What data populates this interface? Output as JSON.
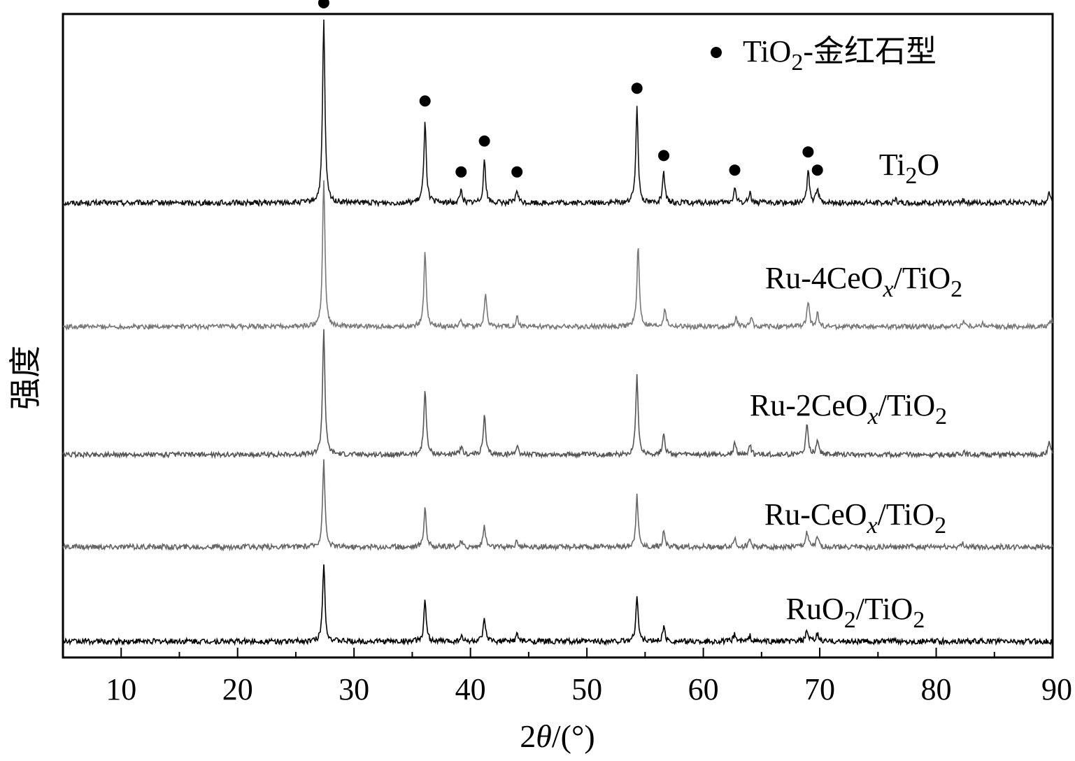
{
  "chart_data": {
    "type": "line",
    "title": "",
    "xlabel": {
      "prefix": "2",
      "symbol": "θ",
      "suffix": "/(°)"
    },
    "ylabel": "强度",
    "xlim": [
      5,
      90
    ],
    "x_ticks": [
      10,
      20,
      30,
      40,
      50,
      60,
      70,
      80,
      90
    ],
    "y_ticks": [],
    "grid": false,
    "legend": {
      "placement": "top-right",
      "marker": "filled-circle",
      "label": {
        "main": "TiO",
        "sub": "2",
        "rest": "-金红石型"
      }
    },
    "rutile_marker_positions": [
      27.4,
      36.1,
      39.2,
      41.2,
      44.0,
      54.3,
      56.6,
      62.7,
      69.0,
      69.8
    ],
    "series": [
      {
        "name": "Ti2O",
        "label_parts": [
          {
            "t": "Ti"
          },
          {
            "t": "2",
            "sub": true
          },
          {
            "t": "O"
          }
        ],
        "color": "#111111",
        "baseline": 0,
        "noise": 3.0,
        "peaks": [
          [
            27.4,
            100
          ],
          [
            36.1,
            46
          ],
          [
            39.2,
            7
          ],
          [
            41.2,
            24
          ],
          [
            44.0,
            7
          ],
          [
            54.3,
            53
          ],
          [
            56.6,
            16
          ],
          [
            62.7,
            8
          ],
          [
            64.0,
            6
          ],
          [
            69.0,
            18
          ],
          [
            69.8,
            8
          ],
          [
            76.5,
            2
          ],
          [
            82.3,
            2
          ],
          [
            89.7,
            6
          ]
        ]
      },
      {
        "name": "Ru-4CeOx/TiO2",
        "label_parts": [
          {
            "t": "Ru-4CeO"
          },
          {
            "t": "x",
            "sub": true,
            "italic": true
          },
          {
            "t": "/TiO"
          },
          {
            "t": "2",
            "sub": true
          }
        ],
        "color": "#777777",
        "baseline": 0,
        "noise": 2.5,
        "peaks": [
          [
            27.4,
            77
          ],
          [
            36.1,
            39
          ],
          [
            39.2,
            4
          ],
          [
            41.3,
            17
          ],
          [
            44.0,
            5
          ],
          [
            54.4,
            42
          ],
          [
            56.7,
            10
          ],
          [
            62.8,
            5
          ],
          [
            64.1,
            5
          ],
          [
            69.0,
            13
          ],
          [
            69.8,
            7
          ],
          [
            82.4,
            3
          ],
          [
            84.0,
            2
          ],
          [
            89.9,
            4
          ]
        ]
      },
      {
        "name": "Ru-2CeOx/TiO2",
        "label_parts": [
          {
            "t": "Ru-2CeO"
          },
          {
            "t": "x",
            "sub": true,
            "italic": true
          },
          {
            "t": "/TiO"
          },
          {
            "t": "2",
            "sub": true
          }
        ],
        "color": "#555555",
        "baseline": 0,
        "noise": 2.5,
        "peaks": [
          [
            27.4,
            64
          ],
          [
            36.1,
            34
          ],
          [
            39.2,
            4
          ],
          [
            41.2,
            20
          ],
          [
            44.0,
            5
          ],
          [
            54.3,
            41
          ],
          [
            56.6,
            11
          ],
          [
            62.7,
            6
          ],
          [
            64.0,
            5
          ],
          [
            68.9,
            15
          ],
          [
            69.8,
            8
          ],
          [
            82.4,
            2
          ],
          [
            89.7,
            6
          ]
        ]
      },
      {
        "name": "Ru-CeOx/TiO2",
        "label_parts": [
          {
            "t": "Ru-CeO"
          },
          {
            "t": "x",
            "sub": true,
            "italic": true
          },
          {
            "t": "/TiO"
          },
          {
            "t": "2",
            "sub": true
          }
        ],
        "color": "#666666",
        "baseline": 0,
        "noise": 3.0,
        "peaks": [
          [
            27.4,
            49
          ],
          [
            36.1,
            23
          ],
          [
            39.2,
            3
          ],
          [
            41.2,
            12
          ],
          [
            44.0,
            4
          ],
          [
            54.3,
            29
          ],
          [
            56.6,
            9
          ],
          [
            62.7,
            5
          ],
          [
            64.0,
            4
          ],
          [
            68.9,
            9
          ],
          [
            69.8,
            5
          ],
          [
            82.3,
            2
          ]
        ]
      },
      {
        "name": "RuO2/TiO2",
        "label_parts": [
          {
            "t": "RuO"
          },
          {
            "t": "2",
            "sub": true
          },
          {
            "t": "/TiO"
          },
          {
            "t": "2",
            "sub": true
          }
        ],
        "color": "#000000",
        "baseline": 0,
        "noise": 3.0,
        "peaks": [
          [
            27.4,
            43
          ],
          [
            36.1,
            22
          ],
          [
            39.2,
            3
          ],
          [
            41.2,
            12
          ],
          [
            44.0,
            4
          ],
          [
            54.3,
            25
          ],
          [
            56.6,
            8
          ],
          [
            62.7,
            4
          ],
          [
            64.0,
            3
          ],
          [
            68.9,
            6
          ],
          [
            69.8,
            4
          ]
        ]
      }
    ]
  }
}
